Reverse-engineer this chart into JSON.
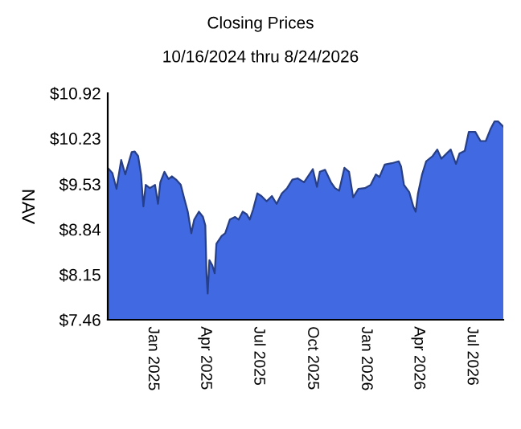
{
  "chart_data": {
    "type": "area",
    "title": "Closing Prices",
    "subtitle": "10/16/2024 thru 8/24/2026",
    "ylabel": "NAV",
    "x": [
      "2024-10-16",
      "2024-10-24",
      "2024-10-31",
      "2024-11-08",
      "2024-11-15",
      "2024-11-26",
      "2024-12-01",
      "2024-12-07",
      "2024-12-12",
      "2024-12-16",
      "2024-12-20",
      "2024-12-27",
      "2025-01-05",
      "2025-01-10",
      "2025-01-14",
      "2025-01-21",
      "2025-01-28",
      "2025-02-03",
      "2025-02-10",
      "2025-02-18",
      "2025-02-24",
      "2025-03-02",
      "2025-03-08",
      "2025-03-13",
      "2025-03-21",
      "2025-03-28",
      "2025-04-01",
      "2025-04-03",
      "2025-04-05",
      "2025-04-08",
      "2025-04-13",
      "2025-04-17",
      "2025-04-20",
      "2025-04-29",
      "2025-05-05",
      "2025-05-13",
      "2025-05-22",
      "2025-05-28",
      "2025-06-04",
      "2025-06-11",
      "2025-06-16",
      "2025-06-22",
      "2025-06-29",
      "2025-07-06",
      "2025-07-15",
      "2025-07-24",
      "2025-08-01",
      "2025-08-10",
      "2025-08-19",
      "2025-08-28",
      "2025-09-06",
      "2025-09-17",
      "2025-09-26",
      "2025-10-02",
      "2025-10-09",
      "2025-10-14",
      "2025-10-23",
      "2025-11-02",
      "2025-11-09",
      "2025-11-16",
      "2025-11-25",
      "2025-12-03",
      "2025-12-10",
      "2025-12-19",
      "2025-12-30",
      "2026-01-09",
      "2026-01-18",
      "2026-01-24",
      "2026-02-02",
      "2026-02-14",
      "2026-02-26",
      "2026-03-02",
      "2026-03-07",
      "2026-03-16",
      "2026-03-23",
      "2026-03-27",
      "2026-03-31",
      "2026-04-07",
      "2026-04-14",
      "2026-04-25",
      "2026-05-03",
      "2026-05-10",
      "2026-05-19",
      "2026-05-26",
      "2026-06-04",
      "2026-06-10",
      "2026-06-19",
      "2026-06-26",
      "2026-07-07",
      "2026-07-16",
      "2026-07-25",
      "2026-08-02",
      "2026-08-09",
      "2026-08-15",
      "2026-08-24"
    ],
    "series": [
      {
        "color": "#4169e1",
        "values": [
          9.78,
          9.7,
          9.46,
          9.9,
          9.68,
          10.02,
          10.03,
          9.96,
          9.68,
          9.19,
          9.52,
          9.47,
          9.52,
          9.23,
          9.56,
          9.72,
          9.61,
          9.65,
          9.6,
          9.52,
          9.31,
          9.11,
          8.78,
          8.99,
          9.11,
          9.03,
          8.9,
          8.17,
          7.86,
          8.37,
          8.29,
          8.17,
          8.62,
          8.74,
          8.78,
          8.99,
          9.03,
          8.99,
          9.11,
          9.07,
          8.99,
          9.15,
          9.39,
          9.35,
          9.27,
          9.35,
          9.23,
          9.39,
          9.47,
          9.6,
          9.62,
          9.56,
          9.68,
          9.76,
          9.49,
          9.72,
          9.75,
          9.56,
          9.47,
          9.43,
          9.78,
          9.72,
          9.33,
          9.46,
          9.47,
          9.52,
          9.68,
          9.64,
          9.83,
          9.85,
          9.88,
          9.8,
          9.52,
          9.41,
          9.19,
          9.11,
          9.39,
          9.68,
          9.88,
          9.96,
          10.06,
          9.92,
          10.0,
          10.06,
          9.84,
          10.0,
          10.04,
          10.33,
          10.33,
          10.19,
          10.19,
          10.37,
          10.49,
          10.49,
          10.41
        ]
      }
    ],
    "xlim": [
      "2024-10-16",
      "2026-08-24"
    ],
    "xticks": [
      {
        "value": "2025-01-01",
        "label": "Jan 2025"
      },
      {
        "value": "2025-04-01",
        "label": "Apr 2025"
      },
      {
        "value": "2025-07-01",
        "label": "Jul 2025"
      },
      {
        "value": "2025-10-01",
        "label": "Oct 2025"
      },
      {
        "value": "2026-01-01",
        "label": "Jan 2026"
      },
      {
        "value": "2026-04-01",
        "label": "Apr 2026"
      },
      {
        "value": "2026-07-01",
        "label": "Jul 2026"
      }
    ],
    "ylim": [
      7.46,
      10.92
    ],
    "yticks": [
      {
        "value": 7.46,
        "label": "$7.46"
      },
      {
        "value": 8.15,
        "label": "$8.15"
      },
      {
        "value": 8.84,
        "label": "$8.84"
      },
      {
        "value": 9.53,
        "label": "$9.53"
      },
      {
        "value": 10.23,
        "label": "$10.23"
      },
      {
        "value": 10.92,
        "label": "$10.92"
      }
    ],
    "grid": false,
    "legend": false
  }
}
